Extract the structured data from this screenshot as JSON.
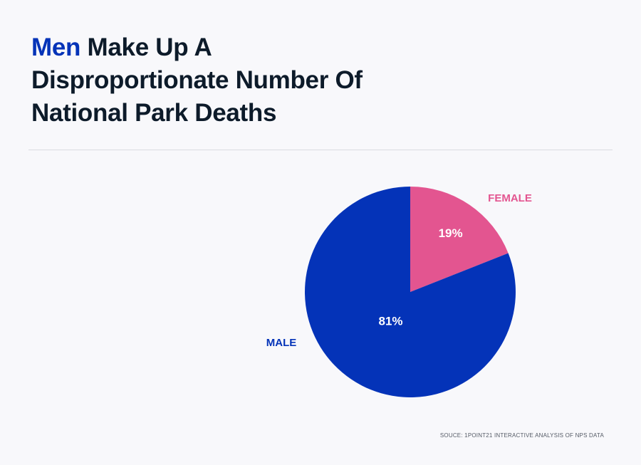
{
  "title": {
    "accent": "Men",
    "rest": " Make Up A Disproportionate Number Of National Park Deaths"
  },
  "source": "SOUCE: 1POINT21 INTERACTIVE ANALYSIS OF NPS DATA",
  "chart_data": {
    "type": "pie",
    "title": "Men Make Up A Disproportionate Number Of National Park Deaths",
    "slices": [
      {
        "label": "FEMALE",
        "value": 19,
        "value_label": "19%",
        "color": "#e35590"
      },
      {
        "label": "MALE",
        "value": 81,
        "value_label": "81%",
        "color": "#0433b8"
      }
    ],
    "start": "12 o'clock, clockwise",
    "legend": "none (direct labels)",
    "value_label_color": "#ffffff"
  }
}
